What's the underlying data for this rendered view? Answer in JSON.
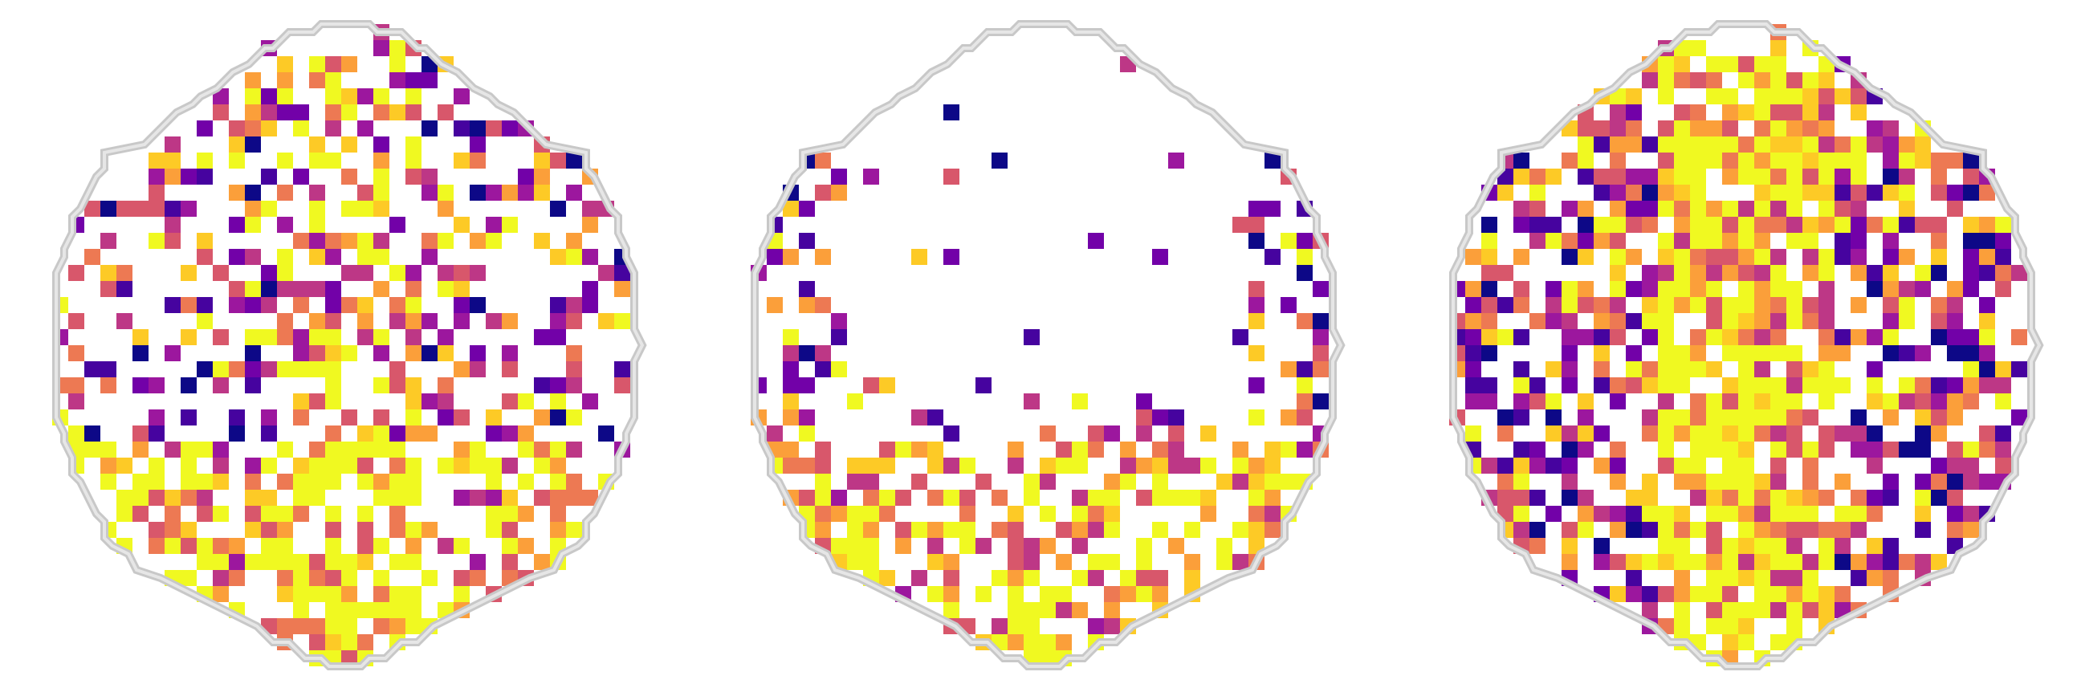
{
  "figure": {
    "description_visible_text": "",
    "colormap": [
      "#0d0887",
      "#46039f",
      "#7201a8",
      "#9c179e",
      "#bd3786",
      "#d8576b",
      "#ed7953",
      "#fb9f3a",
      "#fdca26",
      "#f0f921"
    ],
    "outline_color": "#c8c8c8",
    "background": "#ffffff"
  },
  "panels": [
    {
      "id": "panel-1",
      "activation_density": 0.42,
      "seed": 11,
      "hot_bias": "posterior"
    },
    {
      "id": "panel-2",
      "activation_density": 0.22,
      "seed": 29,
      "hot_bias": "posterior-band"
    },
    {
      "id": "panel-3",
      "activation_density": 0.62,
      "seed": 47,
      "hot_bias": "midline"
    }
  ]
}
